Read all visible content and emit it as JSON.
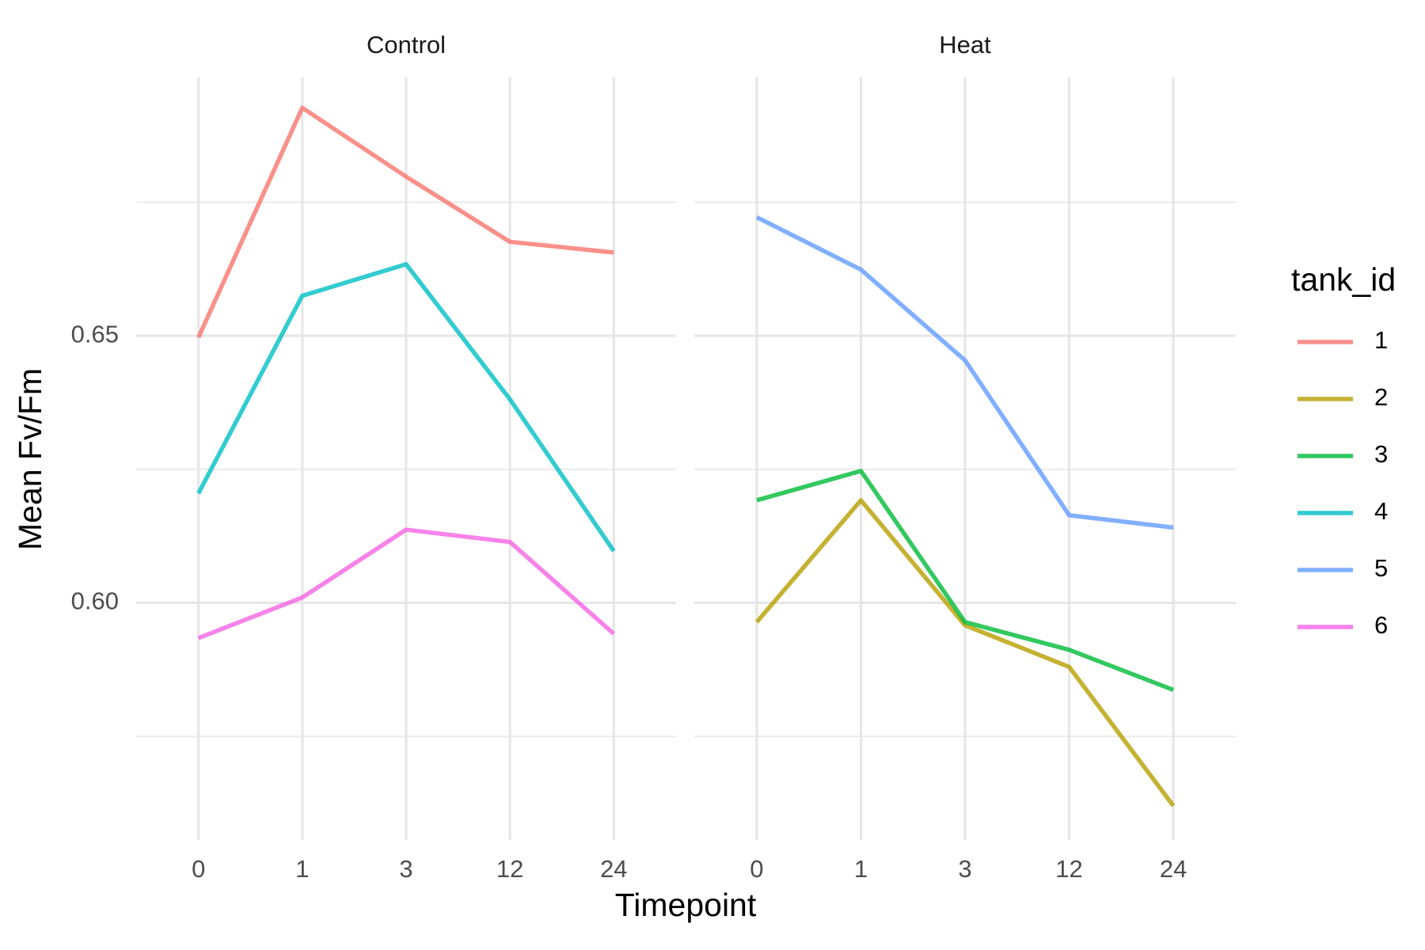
{
  "x_label": "Timepoint",
  "y_label": "Mean Fv/Fm",
  "legend_title": "tank_id",
  "chart_data": [
    {
      "type": "line",
      "title": "Control",
      "categories": [
        "0",
        "1",
        "3",
        "12",
        "24"
      ],
      "ylim": [
        0.5556,
        0.6985
      ],
      "yticks": [
        {
          "value": 0.6,
          "label": "0.60"
        },
        0.65
      ],
      "minor_yticks": [
        0.575,
        0.625,
        0.675
      ],
      "grid": true,
      "series": [
        {
          "name": "1",
          "color": "#F8766D",
          "values": [
            0.6497,
            0.6927,
            0.6798,
            0.6676,
            0.6656
          ]
        },
        {
          "name": "4",
          "color": "#00BFC4",
          "values": [
            0.6205,
            0.6575,
            0.6634,
            0.6381,
            0.6097
          ]
        },
        {
          "name": "6",
          "color": "#F564E3",
          "values": [
            0.5934,
            0.601,
            0.6137,
            0.6114,
            0.5942
          ]
        }
      ]
    },
    {
      "type": "line",
      "title": "Heat",
      "categories": [
        "0",
        "1",
        "3",
        "12",
        "24"
      ],
      "ylim": [
        0.5556,
        0.6985
      ],
      "yticks": [
        0.6,
        0.65
      ],
      "minor_yticks": [
        0.575,
        0.625,
        0.675
      ],
      "grid": true,
      "series": [
        {
          "name": "2",
          "color": "#B79F00",
          "values": [
            0.5964,
            0.6192,
            0.5958,
            0.588,
            0.562
          ]
        },
        {
          "name": "3",
          "color": "#00BA38",
          "values": [
            0.6192,
            0.6247,
            0.5964,
            0.5912,
            0.5837
          ]
        },
        {
          "name": "5",
          "color": "#619CFF",
          "values": [
            0.6722,
            0.6624,
            0.6454,
            0.6164,
            0.6141
          ]
        }
      ]
    }
  ]
}
